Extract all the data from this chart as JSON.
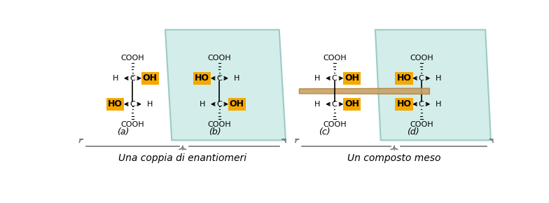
{
  "bg_color": "#ffffff",
  "panel_color": "#c5e8e3",
  "panel_edge_color": "#80bdb5",
  "orange_color": "#f5a800",
  "black": "#000000",
  "symplane_color": "#c8a060",
  "symplane_edge": "#b08040",
  "label_a": "(a)",
  "label_b": "(b)",
  "label_c": "(c)",
  "label_d": "(d)",
  "caption_left": "Una coppia di enantiomeri",
  "caption_right": "Un composto meso",
  "fs_mol": 8,
  "fs_label": 9,
  "fs_caption": 10
}
